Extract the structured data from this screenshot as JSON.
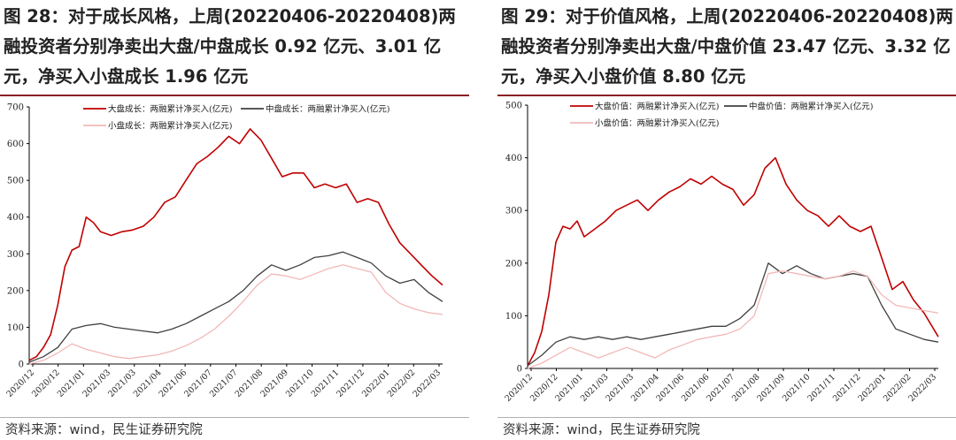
{
  "charts": [
    {
      "figure_title": "图 28：对于成长风格，上周(20220406-20220408)两融投资者分别净卖出大盘/中盘成长 0.92 亿元、3.01 亿元，净买入小盘成长 1.96 亿元",
      "source": "资料来源：wind，民生证券研究院",
      "chart_data": {
        "type": "line",
        "ylim": [
          0,
          700
        ],
        "yticks": [
          0,
          100,
          200,
          300,
          400,
          500,
          600,
          700
        ],
        "xticks": [
          "2020/12",
          "2020/12",
          "2021/01",
          "2021/03",
          "2021/03",
          "2021/04",
          "2021/06",
          "2021/07",
          "2021/07",
          "2021/08",
          "2021/09",
          "2021/10",
          "2021/11",
          "2021/12",
          "2022/01",
          "2022/02",
          "2022/03"
        ],
        "legend_position": "top",
        "series": [
          {
            "name": "大盘成长：两融累计净买入(亿元)",
            "color": "#c00000",
            "x": [
              0,
              2,
              4,
              6,
              8,
              10,
              12,
              14,
              16,
              18,
              20,
              23,
              26,
              29,
              32,
              35,
              38,
              41,
              44,
              47,
              50,
              53,
              56,
              59,
              62,
              65,
              68,
              71,
              74,
              77,
              80,
              83,
              86,
              89,
              92,
              95,
              98,
              101,
              104,
              107,
              110,
              113,
              116
            ],
            "values": [
              10,
              20,
              45,
              80,
              160,
              265,
              310,
              320,
              400,
              385,
              360,
              350,
              360,
              365,
              375,
              400,
              440,
              455,
              500,
              545,
              565,
              590,
              620,
              600,
              640,
              610,
              560,
              510,
              520,
              520,
              480,
              490,
              480,
              490,
              440,
              450,
              440,
              380,
              330,
              300,
              270,
              240,
              215
            ]
          },
          {
            "name": "中盘成长：两融累计净买入(亿元)",
            "color": "#404040",
            "x": [
              0,
              4,
              8,
              12,
              16,
              20,
              24,
              28,
              32,
              36,
              40,
              44,
              48,
              52,
              56,
              60,
              64,
              68,
              72,
              76,
              80,
              84,
              88,
              92,
              96,
              100,
              104,
              108,
              112,
              116
            ],
            "values": [
              5,
              20,
              45,
              95,
              105,
              110,
              100,
              95,
              90,
              85,
              95,
              110,
              130,
              150,
              170,
              200,
              240,
              270,
              255,
              270,
              290,
              295,
              305,
              290,
              275,
              240,
              220,
              230,
              195,
              170
            ]
          },
          {
            "name": "小盘成长：两融累计净买入(亿元)",
            "color": "#f2b8b8",
            "x": [
              0,
              4,
              8,
              12,
              16,
              20,
              24,
              28,
              32,
              36,
              40,
              44,
              48,
              52,
              56,
              60,
              64,
              68,
              72,
              76,
              80,
              84,
              88,
              92,
              96,
              100,
              104,
              108,
              112,
              116
            ],
            "values": [
              0,
              10,
              30,
              55,
              40,
              30,
              20,
              15,
              20,
              25,
              35,
              50,
              70,
              95,
              130,
              170,
              215,
              245,
              240,
              230,
              245,
              260,
              270,
              260,
              250,
              195,
              165,
              150,
              140,
              135
            ]
          }
        ]
      }
    },
    {
      "figure_title": "图 29：对于价值风格，上周(20220406-20220408)两融投资者分别净卖出大盘/中盘价值 23.47 亿元、3.32 亿元，净买入小盘价值 8.80 亿元",
      "source": "资料来源：wind，民生证券研究院",
      "chart_data": {
        "type": "line",
        "ylim": [
          0,
          500
        ],
        "yticks": [
          0,
          100,
          200,
          300,
          400,
          500
        ],
        "xticks": [
          "2020/12",
          "2020/12",
          "2021/01",
          "2021/03",
          "2021/03",
          "2021/04",
          "2021/06",
          "2021/06",
          "2021/07",
          "2021/08",
          "2021/09",
          "2021/10",
          "2021/11",
          "2021/12",
          "2022/01",
          "2022/02",
          "2022/03"
        ],
        "legend_position": "top",
        "series": [
          {
            "name": "大盘价值：两融累计净买入(亿元)",
            "color": "#c00000",
            "x": [
              0,
              2,
              4,
              6,
              8,
              10,
              12,
              14,
              16,
              19,
              22,
              25,
              28,
              31,
              34,
              37,
              40,
              43,
              46,
              49,
              52,
              55,
              58,
              61,
              64,
              67,
              70,
              73,
              76,
              79,
              82,
              85,
              88,
              91,
              94,
              97,
              100,
              103,
              106,
              109,
              112,
              116
            ],
            "values": [
              5,
              30,
              70,
              140,
              240,
              270,
              265,
              280,
              250,
              265,
              280,
              300,
              310,
              320,
              300,
              320,
              335,
              345,
              360,
              350,
              365,
              350,
              340,
              310,
              330,
              380,
              400,
              350,
              320,
              300,
              290,
              270,
              290,
              270,
              260,
              270,
              210,
              150,
              165,
              130,
              105,
              60
            ]
          },
          {
            "name": "中盘价值：两融累计净买入(亿元)",
            "color": "#404040",
            "x": [
              0,
              4,
              8,
              12,
              16,
              20,
              24,
              28,
              32,
              36,
              40,
              44,
              48,
              52,
              56,
              60,
              64,
              68,
              72,
              76,
              80,
              84,
              88,
              92,
              96,
              100,
              104,
              108,
              112,
              116
            ],
            "values": [
              5,
              25,
              50,
              60,
              55,
              60,
              55,
              60,
              55,
              60,
              65,
              70,
              75,
              80,
              80,
              95,
              120,
              200,
              180,
              195,
              180,
              170,
              175,
              180,
              175,
              120,
              75,
              65,
              55,
              50
            ]
          },
          {
            "name": "小盘价值：两融累计净买入(亿元)",
            "color": "#f2b8b8",
            "x": [
              0,
              4,
              8,
              12,
              16,
              20,
              24,
              28,
              32,
              36,
              40,
              44,
              48,
              52,
              56,
              60,
              64,
              68,
              72,
              76,
              80,
              84,
              88,
              92,
              96,
              100,
              104,
              108,
              112,
              116
            ],
            "values": [
              0,
              10,
              25,
              40,
              30,
              20,
              30,
              40,
              30,
              20,
              35,
              45,
              55,
              60,
              65,
              75,
              100,
              180,
              185,
              180,
              175,
              170,
              175,
              185,
              175,
              140,
              120,
              115,
              110,
              105
            ]
          }
        ]
      }
    }
  ]
}
